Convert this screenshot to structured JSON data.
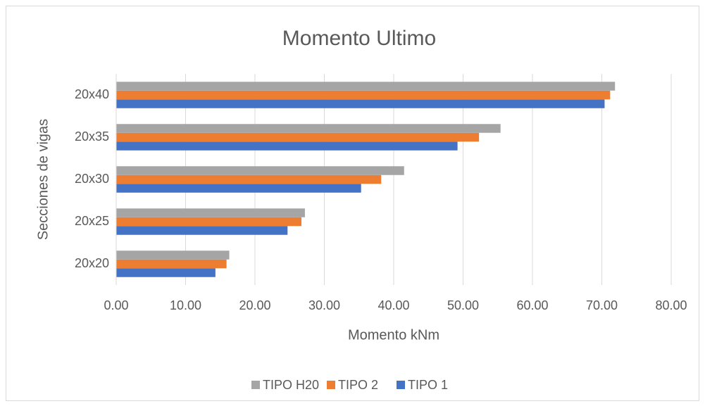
{
  "chart_data": {
    "type": "bar",
    "orientation": "horizontal",
    "title": "Momento Ultimo",
    "x_label": "Momento kNm",
    "y_label": "Secciones  de vigas",
    "categories": [
      "20x20",
      "20x25",
      "20x30",
      "20x35",
      "20x40"
    ],
    "series": [
      {
        "name": "TIPO 1",
        "color": "#4472c4",
        "values": [
          14.3,
          24.7,
          35.3,
          49.2,
          70.4
        ]
      },
      {
        "name": "TIPO 2",
        "color": "#ed7d31",
        "values": [
          15.9,
          26.7,
          38.2,
          52.3,
          71.2
        ]
      },
      {
        "name": "TIPO H20",
        "color": "#a5a5a5",
        "values": [
          16.3,
          27.2,
          41.5,
          55.4,
          71.9
        ]
      }
    ],
    "xlim": [
      0,
      80
    ],
    "xticks": [
      {
        "value": 0,
        "label": "0.00"
      },
      {
        "value": 10,
        "label": "10.00"
      },
      {
        "value": 20,
        "label": "20.00"
      },
      {
        "value": 30,
        "label": "30.00"
      },
      {
        "value": 40,
        "label": "40.00"
      },
      {
        "value": 50,
        "label": "50.00"
      },
      {
        "value": 60,
        "label": "60.00"
      },
      {
        "value": 70,
        "label": "70.00"
      },
      {
        "value": 80,
        "label": "80.00"
      }
    ],
    "grid": true,
    "legend": "bottom"
  }
}
